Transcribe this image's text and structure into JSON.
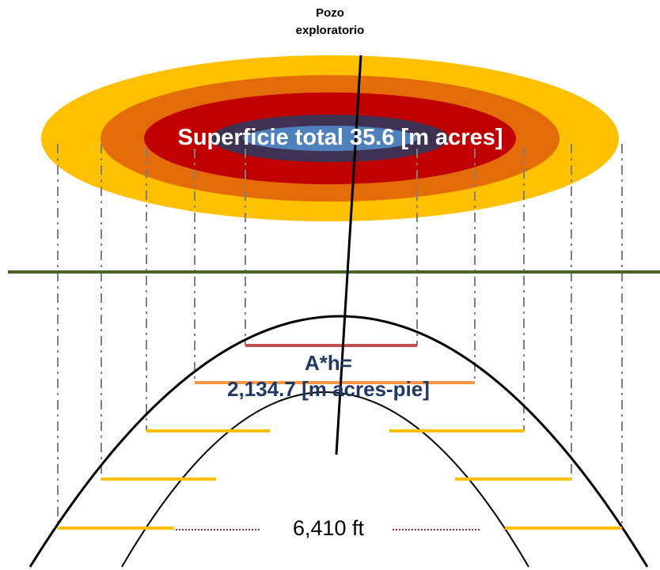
{
  "well_label_line1": "Pozo",
  "well_label_line2": "exploratorio",
  "surface_label": "Superficie total 35.6 [m acres]",
  "volume_label_line1": "A*h=",
  "volume_label_line2": "2,134.7 [m acres-pie]",
  "distance_label": "6,410 ft",
  "colors": {
    "outer_ring": "#FFC000",
    "ring_2": "#E36C09",
    "ring_3": "#C00000",
    "ring_4": "#3F3151",
    "inner_core": "#4F81BD",
    "ground_line": "#4F6228",
    "top_contour": "#C0504D",
    "second_contour": "#F79646",
    "lower_contours": "#FFC000",
    "projection_lines": "#7F7F7F",
    "distance_dots": "#943634",
    "volume_text": "#1F3864"
  }
}
